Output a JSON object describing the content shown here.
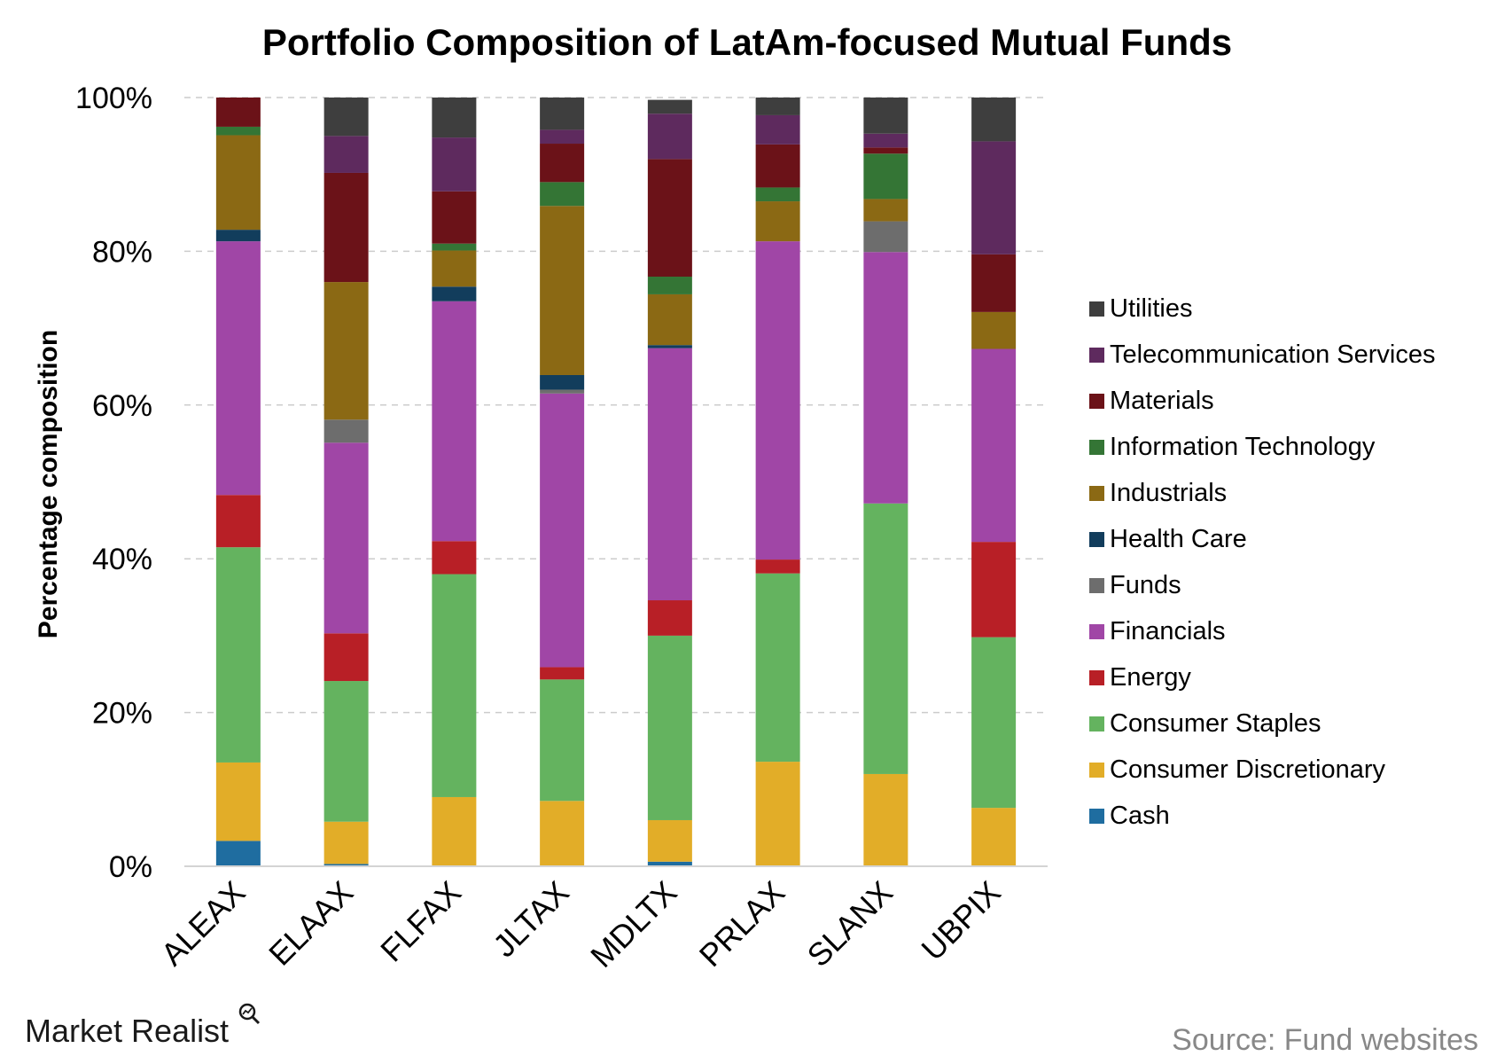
{
  "chart_data": {
    "type": "bar",
    "stacked": true,
    "title": "Portfolio Composition of LatAm-focused Mutual Funds",
    "ylabel": "Percentage composition",
    "xlabel": "",
    "ylim": [
      0,
      100
    ],
    "y_ticks": [
      "0%",
      "20%",
      "40%",
      "60%",
      "80%",
      "100%"
    ],
    "grid": true,
    "legend_position": "right",
    "categories": [
      "ALEAX",
      "ELAAX",
      "FLFAX",
      "JLTAX",
      "MDLTX",
      "PRLAX",
      "SLANX",
      "UBPIX"
    ],
    "series": [
      {
        "name": "Cash",
        "color": "#1f6da0",
        "values": [
          3.3,
          0.3,
          0,
          0,
          0.6,
          0,
          0,
          0
        ]
      },
      {
        "name": "Consumer Discretionary",
        "color": "#e2ad28",
        "values": [
          10.2,
          5.5,
          9.0,
          8.5,
          5.4,
          13.6,
          12.0,
          7.6
        ]
      },
      {
        "name": "Consumer Staples",
        "color": "#64b35f",
        "values": [
          28.0,
          18.3,
          29.0,
          15.8,
          24.0,
          24.5,
          35.2,
          22.2
        ]
      },
      {
        "name": "Energy",
        "color": "#b81f26",
        "values": [
          6.8,
          6.2,
          4.3,
          1.6,
          4.6,
          1.8,
          0,
          12.4
        ]
      },
      {
        "name": "Financials",
        "color": "#a046a6",
        "values": [
          33.0,
          24.8,
          31.2,
          35.6,
          32.8,
          41.4,
          32.7,
          25.1
        ]
      },
      {
        "name": "Funds",
        "color": "#6d6d6d",
        "values": [
          0,
          3.0,
          0,
          0.5,
          0,
          0,
          4.0,
          0
        ]
      },
      {
        "name": "Health Care",
        "color": "#123d5c",
        "values": [
          1.5,
          0,
          1.9,
          1.9,
          0.4,
          0,
          0,
          0
        ]
      },
      {
        "name": "Industrials",
        "color": "#8b6914",
        "values": [
          12.3,
          17.9,
          4.7,
          22.0,
          6.6,
          5.2,
          2.9,
          4.8
        ]
      },
      {
        "name": "Information Technology",
        "color": "#347535",
        "values": [
          1.1,
          0,
          0.9,
          3.1,
          2.3,
          1.8,
          5.9,
          0
        ]
      },
      {
        "name": "Materials",
        "color": "#6b1218",
        "values": [
          3.8,
          14.2,
          6.8,
          5.0,
          15.3,
          5.6,
          0.8,
          7.5
        ]
      },
      {
        "name": "Telecommunication Services",
        "color": "#5e2a5e",
        "values": [
          0,
          4.8,
          7.0,
          1.8,
          5.9,
          3.8,
          1.8,
          14.7
        ]
      },
      {
        "name": "Utilities",
        "color": "#3e3e3e",
        "values": [
          0,
          5.0,
          5.2,
          4.2,
          1.8,
          2.3,
          4.7,
          5.7
        ]
      }
    ]
  },
  "footer": {
    "brand": "Market Realist",
    "source": "Source: Fund websites"
  }
}
